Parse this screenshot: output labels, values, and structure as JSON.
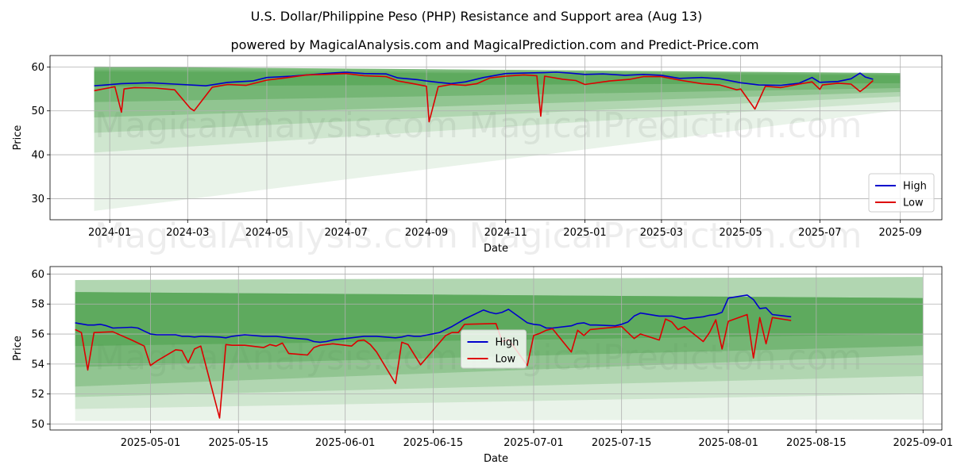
{
  "title": "U.S. Dollar/Philippine Peso (PHP) Resistance and Support area (Aug 13)",
  "subtitle": "powered by MagicalAnalysis.com and MagicalPrediction.com and Predict-Price.com",
  "watermarks": [
    "MagicalAnalysis.com",
    "MagicalPrediction.com"
  ],
  "colors": {
    "high": "#0000cc",
    "low": "#dd0000",
    "band": "#4aa04a",
    "grid": "#b0b0b0"
  },
  "chart_data": [
    {
      "type": "line",
      "xlabel": "Date",
      "ylabel": "Price",
      "xlim": [
        "2023-11-16",
        "2025-10-03"
      ],
      "ylim": [
        25.2,
        62.6
      ],
      "xticks": [
        "2024-01-01",
        "2024-03-01",
        "2024-05-01",
        "2024-07-01",
        "2024-09-01",
        "2024-11-01",
        "2025-01-01",
        "2025-03-01",
        "2025-05-01",
        "2025-07-01",
        "2025-09-01"
      ],
      "xtick_labels": [
        "2024-01",
        "2024-03",
        "2024-05",
        "2024-07",
        "2024-09",
        "2024-11",
        "2025-01",
        "2025-03",
        "2025-05",
        "2025-07",
        "2025-09"
      ],
      "yticks": [
        30,
        40,
        50,
        60
      ],
      "legend": [
        "High",
        "Low"
      ],
      "legend_position": "lower right",
      "band_x": [
        "2023-12-20",
        "2025-09-01"
      ],
      "bands": [
        {
          "top": [
            60.1,
            58.6
          ],
          "bottom": [
            55.6,
            56.3
          ]
        },
        {
          "top": [
            60.1,
            58.6
          ],
          "bottom": [
            52.0,
            55.2
          ]
        },
        {
          "top": [
            59.4,
            58.4
          ],
          "bottom": [
            48.5,
            54.3
          ]
        },
        {
          "top": [
            59.0,
            58.2
          ],
          "bottom": [
            45.0,
            53.3
          ]
        },
        {
          "top": [
            59.0,
            58.0
          ],
          "bottom": [
            40.5,
            52.0
          ]
        },
        {
          "top": [
            59.0,
            58.0
          ],
          "bottom": [
            27.2,
            50.2
          ]
        }
      ],
      "series": [
        {
          "name": "High",
          "x": [
            "2023-12-20",
            "2024-01-10",
            "2024-02-01",
            "2024-02-20",
            "2024-03-15",
            "2024-04-01",
            "2024-04-20",
            "2024-05-01",
            "2024-05-20",
            "2024-06-01",
            "2024-06-20",
            "2024-07-01",
            "2024-07-15",
            "2024-08-01",
            "2024-08-10",
            "2024-08-25",
            "2024-09-01",
            "2024-09-10",
            "2024-09-20",
            "2024-10-01",
            "2024-10-15",
            "2024-11-01",
            "2024-11-15",
            "2024-12-01",
            "2024-12-10",
            "2024-12-20",
            "2025-01-01",
            "2025-01-15",
            "2025-02-01",
            "2025-02-15",
            "2025-03-01",
            "2025-03-15",
            "2025-04-01",
            "2025-04-15",
            "2025-05-01",
            "2025-05-15",
            "2025-06-01",
            "2025-06-15",
            "2025-06-25",
            "2025-07-01",
            "2025-07-15",
            "2025-07-25",
            "2025-08-01",
            "2025-08-05",
            "2025-08-11"
          ],
          "values": [
            55.7,
            56.2,
            56.4,
            56.1,
            55.7,
            56.5,
            56.8,
            57.6,
            57.9,
            58.2,
            58.6,
            58.8,
            58.5,
            58.4,
            57.5,
            57.1,
            56.8,
            56.5,
            56.2,
            56.6,
            57.6,
            58.5,
            58.6,
            58.7,
            58.8,
            58.6,
            58.3,
            58.4,
            58.1,
            58.3,
            58.1,
            57.4,
            57.6,
            57.3,
            56.4,
            55.9,
            55.8,
            56.3,
            57.6,
            56.5,
            56.7,
            57.3,
            58.6,
            57.7,
            57.2
          ]
        },
        {
          "name": "Low",
          "x": [
            "2023-12-20",
            "2024-01-05",
            "2024-01-10",
            "2024-01-12",
            "2024-01-20",
            "2024-02-05",
            "2024-02-20",
            "2024-03-03",
            "2024-03-06",
            "2024-03-20",
            "2024-04-01",
            "2024-04-15",
            "2024-05-01",
            "2024-05-15",
            "2024-06-01",
            "2024-06-15",
            "2024-07-01",
            "2024-07-15",
            "2024-08-01",
            "2024-08-10",
            "2024-08-20",
            "2024-09-01",
            "2024-09-03",
            "2024-09-10",
            "2024-09-20",
            "2024-10-01",
            "2024-10-10",
            "2024-10-20",
            "2024-11-01",
            "2024-11-15",
            "2024-11-25",
            "2024-11-28",
            "2024-12-01",
            "2024-12-15",
            "2024-12-25",
            "2025-01-01",
            "2025-01-20",
            "2025-02-05",
            "2025-02-15",
            "2025-03-01",
            "2025-03-15",
            "2025-04-01",
            "2025-04-15",
            "2025-04-28",
            "2025-05-01",
            "2025-05-12",
            "2025-05-20",
            "2025-06-01",
            "2025-06-15",
            "2025-06-25",
            "2025-07-01",
            "2025-07-03",
            "2025-07-15",
            "2025-07-25",
            "2025-08-01",
            "2025-08-05",
            "2025-08-11"
          ],
          "values": [
            54.6,
            55.5,
            49.7,
            55.0,
            55.3,
            55.2,
            54.8,
            50.6,
            50.0,
            55.4,
            56.0,
            55.8,
            57.0,
            57.5,
            58.2,
            58.3,
            58.5,
            58.0,
            57.8,
            56.8,
            56.3,
            55.6,
            47.5,
            55.5,
            56.0,
            55.8,
            56.2,
            57.5,
            57.9,
            58.2,
            58.0,
            48.8,
            57.9,
            57.2,
            56.9,
            56.0,
            56.8,
            57.2,
            57.8,
            57.8,
            57.0,
            56.2,
            55.9,
            54.8,
            55.0,
            50.4,
            55.6,
            55.3,
            56.1,
            56.6,
            54.9,
            55.9,
            56.3,
            56.1,
            54.4,
            55.3,
            56.9
          ]
        }
      ]
    },
    {
      "type": "line",
      "xlabel": "Date",
      "ylabel": "Price",
      "xlim": [
        "2025-04-15",
        "2025-09-04"
      ],
      "ylim": [
        49.6,
        60.5
      ],
      "xticks": [
        "2025-05-01",
        "2025-05-15",
        "2025-06-01",
        "2025-06-15",
        "2025-07-01",
        "2025-07-15",
        "2025-08-01",
        "2025-08-15",
        "2025-09-01"
      ],
      "xtick_labels": [
        "2025-05-01",
        "2025-05-15",
        "2025-06-01",
        "2025-06-15",
        "2025-07-01",
        "2025-07-15",
        "2025-08-01",
        "2025-08-15",
        "2025-09-01"
      ],
      "yticks": [
        50,
        52,
        54,
        56,
        58,
        60
      ],
      "legend": [
        "High",
        "Low"
      ],
      "legend_position": "center",
      "band_x": [
        "2025-04-19",
        "2025-09-01"
      ],
      "bands": [
        {
          "top": [
            58.8,
            58.4
          ],
          "bottom": [
            55.2,
            56.0
          ]
        },
        {
          "top": [
            58.8,
            58.4
          ],
          "bottom": [
            53.8,
            55.2
          ]
        },
        {
          "top": [
            58.8,
            58.4
          ],
          "bottom": [
            52.5,
            54.6
          ]
        },
        {
          "top": [
            59.6,
            59.8
          ],
          "bottom": [
            51.8,
            53.2
          ]
        },
        {
          "top": [
            59.6,
            59.8
          ],
          "bottom": [
            51.0,
            52.0
          ]
        },
        {
          "top": [
            59.6,
            59.8
          ],
          "bottom": [
            50.2,
            50.3
          ]
        }
      ],
      "series": [
        {
          "name": "High",
          "x": [
            "2025-04-19",
            "2025-04-21",
            "2025-04-22",
            "2025-04-23",
            "2025-04-24",
            "2025-04-25",
            "2025-04-28",
            "2025-04-29",
            "2025-04-30",
            "2025-05-01",
            "2025-05-02",
            "2025-05-05",
            "2025-05-06",
            "2025-05-07",
            "2025-05-08",
            "2025-05-09",
            "2025-05-12",
            "2025-05-13",
            "2025-05-14",
            "2025-05-15",
            "2025-05-16",
            "2025-05-19",
            "2025-05-20",
            "2025-05-21",
            "2025-05-22",
            "2025-05-23",
            "2025-05-26",
            "2025-05-27",
            "2025-05-28",
            "2025-05-29",
            "2025-05-30",
            "2025-06-02",
            "2025-06-03",
            "2025-06-04",
            "2025-06-05",
            "2025-06-06",
            "2025-06-09",
            "2025-06-10",
            "2025-06-11",
            "2025-06-12",
            "2025-06-13",
            "2025-06-16",
            "2025-06-17",
            "2025-06-18",
            "2025-06-19",
            "2025-06-20",
            "2025-06-23",
            "2025-06-24",
            "2025-06-25",
            "2025-06-26",
            "2025-06-27",
            "2025-06-30",
            "2025-07-01",
            "2025-07-02",
            "2025-07-03",
            "2025-07-04",
            "2025-07-07",
            "2025-07-08",
            "2025-07-09",
            "2025-07-10",
            "2025-07-11",
            "2025-07-14",
            "2025-07-15",
            "2025-07-16",
            "2025-07-17",
            "2025-07-18",
            "2025-07-21",
            "2025-07-22",
            "2025-07-23",
            "2025-07-24",
            "2025-07-25",
            "2025-07-28",
            "2025-07-29",
            "2025-07-30",
            "2025-07-31",
            "2025-08-01",
            "2025-08-04",
            "2025-08-05",
            "2025-08-06",
            "2025-08-07",
            "2025-08-08",
            "2025-08-11"
          ],
          "values": [
            56.75,
            56.6,
            56.6,
            56.65,
            56.55,
            56.4,
            56.45,
            56.4,
            56.2,
            56.0,
            55.95,
            55.95,
            55.85,
            55.85,
            55.8,
            55.85,
            55.8,
            55.75,
            55.85,
            55.9,
            55.95,
            55.85,
            55.85,
            55.85,
            55.8,
            55.75,
            55.65,
            55.5,
            55.45,
            55.5,
            55.6,
            55.75,
            55.8,
            55.85,
            55.85,
            55.85,
            55.75,
            55.8,
            55.9,
            55.85,
            55.85,
            56.1,
            56.3,
            56.5,
            56.75,
            57.0,
            57.6,
            57.45,
            57.35,
            57.45,
            57.65,
            56.75,
            56.65,
            56.6,
            56.4,
            56.4,
            56.55,
            56.7,
            56.75,
            56.6,
            56.6,
            56.55,
            56.65,
            56.8,
            57.2,
            57.4,
            57.2,
            57.2,
            57.2,
            57.1,
            57.0,
            57.15,
            57.25,
            57.3,
            57.45,
            58.4,
            58.6,
            58.3,
            57.7,
            57.75,
            57.3,
            57.15
          ]
        },
        {
          "name": "Low",
          "x": [
            "2025-04-19",
            "2025-04-20",
            "2025-04-21",
            "2025-04-22",
            "2025-04-25",
            "2025-04-28",
            "2025-04-29",
            "2025-04-30",
            "2025-05-01",
            "2025-05-02",
            "2025-05-05",
            "2025-05-06",
            "2025-05-07",
            "2025-05-08",
            "2025-05-09",
            "2025-05-12",
            "2025-05-13",
            "2025-05-14",
            "2025-05-16",
            "2025-05-19",
            "2025-05-20",
            "2025-05-21",
            "2025-05-22",
            "2025-05-23",
            "2025-05-26",
            "2025-05-27",
            "2025-05-28",
            "2025-05-29",
            "2025-05-30",
            "2025-06-02",
            "2025-06-03",
            "2025-06-04",
            "2025-06-05",
            "2025-06-06",
            "2025-06-09",
            "2025-06-10",
            "2025-06-11",
            "2025-06-13",
            "2025-06-17",
            "2025-06-18",
            "2025-06-19",
            "2025-06-20",
            "2025-06-25",
            "2025-06-26",
            "2025-06-27",
            "2025-06-30",
            "2025-07-01",
            "2025-07-02",
            "2025-07-03",
            "2025-07-04",
            "2025-07-07",
            "2025-07-08",
            "2025-07-09",
            "2025-07-10",
            "2025-07-15",
            "2025-07-16",
            "2025-07-17",
            "2025-07-18",
            "2025-07-21",
            "2025-07-22",
            "2025-07-23",
            "2025-07-24",
            "2025-07-25",
            "2025-07-28",
            "2025-07-29",
            "2025-07-30",
            "2025-07-31",
            "2025-08-01",
            "2025-08-04",
            "2025-08-05",
            "2025-08-06",
            "2025-08-07",
            "2025-08-08",
            "2025-08-11"
          ],
          "values": [
            56.3,
            56.1,
            53.6,
            56.1,
            56.15,
            55.6,
            55.4,
            55.2,
            53.9,
            54.2,
            54.95,
            54.9,
            54.1,
            55.0,
            55.2,
            50.4,
            55.3,
            55.25,
            55.25,
            55.1,
            55.3,
            55.2,
            55.4,
            54.7,
            54.6,
            55.1,
            55.25,
            55.3,
            55.35,
            55.2,
            55.55,
            55.6,
            55.3,
            54.8,
            52.7,
            55.45,
            55.3,
            53.95,
            55.9,
            56.1,
            56.1,
            56.65,
            56.7,
            55.5,
            55.65,
            53.9,
            55.9,
            56.05,
            56.25,
            56.35,
            54.8,
            56.25,
            55.9,
            56.3,
            56.5,
            56.1,
            55.7,
            56.0,
            55.6,
            57.0,
            56.8,
            56.3,
            56.5,
            55.5,
            56.1,
            56.95,
            55.0,
            56.85,
            57.3,
            54.4,
            57.1,
            55.35,
            57.1,
            56.9
          ]
        }
      ]
    }
  ]
}
